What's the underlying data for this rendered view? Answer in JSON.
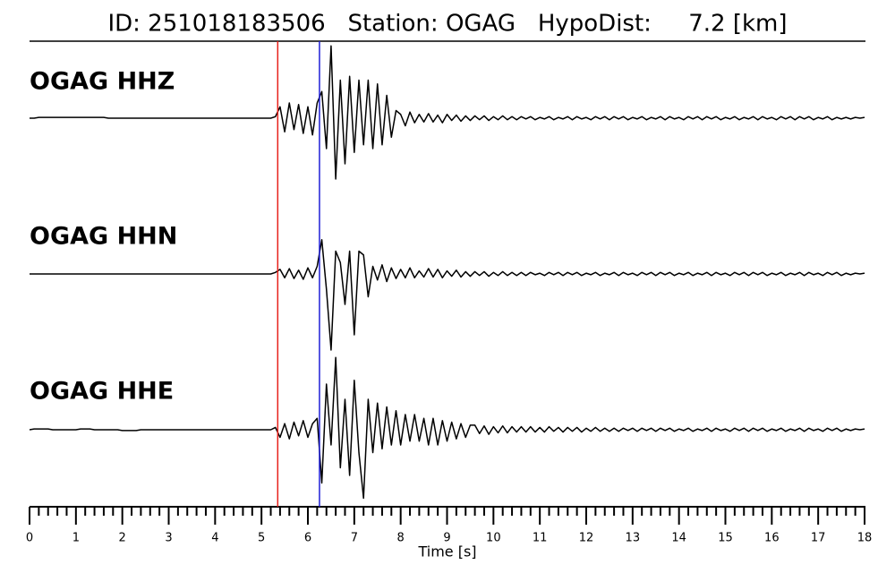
{
  "chart_data": {
    "type": "line",
    "title": "ID: 251018183506   Station: OGAG   HypoDist:     7.2 [km]",
    "x_label": "Time [s]",
    "xlim": [
      0,
      18
    ],
    "ylim": [
      -1,
      1
    ],
    "xticks": [
      0,
      1,
      2,
      3,
      4,
      5,
      6,
      7,
      8,
      9,
      10,
      11,
      12,
      13,
      14,
      15,
      16,
      17,
      18
    ],
    "xminorticks": [
      0.2,
      0.4,
      0.6,
      0.8,
      1.2,
      1.4,
      1.6,
      1.8,
      2.2,
      2.4,
      2.6,
      2.8,
      3.2,
      3.4,
      3.6,
      3.8,
      4.2,
      4.4,
      4.6,
      4.8,
      5.2,
      5.4,
      5.6,
      5.8,
      6.2,
      6.4,
      6.6,
      6.8,
      7.2,
      7.4,
      7.6,
      7.8,
      8.2,
      8.4,
      8.6,
      8.8,
      9.2,
      9.4,
      9.6,
      9.8,
      10.2,
      10.4,
      10.6,
      10.8,
      11.2,
      11.4,
      11.6,
      11.8,
      12.2,
      12.4,
      12.6,
      12.8,
      13.2,
      13.4,
      13.6,
      13.8,
      14.2,
      14.4,
      14.6,
      14.8,
      15.2,
      15.4,
      15.6,
      15.8,
      16.2,
      16.4,
      16.6,
      16.8,
      17.2,
      17.4,
      17.6,
      17.8
    ],
    "vlines": [
      {
        "x": 5.35,
        "color": "#e8221c"
      },
      {
        "x": 6.25,
        "color": "#1f1fd6"
      }
    ],
    "label_color": "#4c9a00",
    "x": [
      0,
      0.1,
      0.2,
      0.3,
      0.4,
      0.5,
      0.6,
      0.7,
      0.8,
      0.9,
      1,
      1.1,
      1.2,
      1.3,
      1.4,
      1.5,
      1.6,
      1.7,
      1.8,
      1.9,
      2,
      2.1,
      2.2,
      2.3,
      2.4,
      2.5,
      2.6,
      2.7,
      2.8,
      2.9,
      3,
      3.1,
      3.2,
      3.3,
      3.4,
      3.5,
      3.6,
      3.7,
      3.8,
      3.9,
      4,
      4.1,
      4.2,
      4.3,
      4.4,
      4.5,
      4.6,
      4.7,
      4.8,
      4.9,
      5,
      5.1,
      5.2,
      5.3,
      5.4,
      5.5,
      5.6,
      5.7,
      5.8,
      5.9,
      6,
      6.1,
      6.2,
      6.3,
      6.4,
      6.5,
      6.6,
      6.7,
      6.8,
      6.9,
      7,
      7.1,
      7.2,
      7.3,
      7.4,
      7.5,
      7.6,
      7.7,
      7.8,
      7.9,
      8,
      8.1,
      8.2,
      8.3,
      8.4,
      8.5,
      8.6,
      8.7,
      8.8,
      8.9,
      9,
      9.1,
      9.2,
      9.3,
      9.4,
      9.5,
      9.6,
      9.7,
      9.8,
      9.9,
      10,
      10.1,
      10.2,
      10.3,
      10.4,
      10.5,
      10.6,
      10.7,
      10.8,
      10.9,
      11,
      11.1,
      11.2,
      11.3,
      11.4,
      11.5,
      11.6,
      11.7,
      11.8,
      11.9,
      12,
      12.1,
      12.2,
      12.3,
      12.4,
      12.5,
      12.6,
      12.7,
      12.8,
      12.9,
      13,
      13.1,
      13.2,
      13.3,
      13.4,
      13.5,
      13.6,
      13.7,
      13.8,
      13.9,
      14,
      14.1,
      14.2,
      14.3,
      14.4,
      14.5,
      14.6,
      14.7,
      14.8,
      14.9,
      15,
      15.1,
      15.2,
      15.3,
      15.4,
      15.5,
      15.6,
      15.7,
      15.8,
      15.9,
      16,
      16.1,
      16.2,
      16.3,
      16.4,
      16.5,
      16.6,
      16.7,
      16.8,
      16.9,
      17,
      17.1,
      17.2,
      17.3,
      17.4,
      17.5,
      17.6,
      17.7,
      17.8,
      17.9,
      18
    ],
    "series": [
      {
        "name": "OGAG HHZ",
        "color": "#000000",
        "values": [
          0,
          0,
          0.01,
          0.01,
          0.01,
          0.01,
          0.01,
          0.01,
          0.01,
          0.01,
          0.01,
          0.01,
          0.01,
          0.01,
          0.01,
          0.01,
          0.01,
          0,
          0,
          0,
          0,
          0,
          0,
          0,
          0,
          0,
          0,
          0,
          0,
          0,
          0,
          0,
          0,
          0,
          0,
          0,
          0,
          0,
          0,
          0,
          0,
          0,
          0,
          0,
          0,
          0,
          0,
          0,
          0,
          0,
          0,
          0,
          0,
          0.02,
          0.15,
          -0.18,
          0.2,
          -0.15,
          0.18,
          -0.2,
          0.15,
          -0.22,
          0.2,
          0.35,
          -0.4,
          0.95,
          -0.8,
          0.5,
          -0.6,
          0.55,
          -0.45,
          0.5,
          -0.35,
          0.5,
          -0.4,
          0.45,
          -0.35,
          0.3,
          -0.25,
          0.1,
          0.05,
          -0.1,
          0.08,
          -0.06,
          0.05,
          -0.05,
          0.06,
          -0.05,
          0.04,
          -0.06,
          0.05,
          -0.03,
          0.04,
          -0.04,
          0.03,
          -0.03,
          0.03,
          -0.02,
          0.03,
          -0.03,
          0.02,
          -0.02,
          0.03,
          -0.02,
          0.02,
          -0.02,
          0.02,
          -0.01,
          0.02,
          -0.02,
          0.01,
          -0.01,
          0.02,
          -0.02,
          0.01,
          -0.01,
          0.02,
          -0.02,
          0.02,
          -0.01,
          0.01,
          -0.02,
          0.02,
          -0.01,
          0.02,
          -0.02,
          0.02,
          -0.01,
          0.02,
          -0.02,
          0.01,
          -0.01,
          0.02,
          -0.02,
          0.01,
          -0.01,
          0.02,
          -0.02,
          0.02,
          -0.01,
          0.01,
          -0.02,
          0.02,
          -0.01,
          0.02,
          -0.02,
          0.02,
          -0.01,
          0.02,
          -0.02,
          0.01,
          -0.01,
          0.02,
          -0.02,
          0.01,
          -0.01,
          0.02,
          -0.02,
          0.02,
          -0.01,
          0.01,
          -0.02,
          0.02,
          -0.01,
          0.02,
          -0.02,
          0.02,
          -0.01,
          0.02,
          -0.02,
          0.01,
          -0.01,
          0.02,
          -0.02,
          0.01,
          -0.01,
          0.01,
          -0.01,
          0.01,
          0,
          0.01
        ]
      },
      {
        "name": "OGAG HHN",
        "color": "#000000",
        "values": [
          0,
          0,
          0,
          0,
          0,
          0,
          0,
          0,
          0,
          0,
          0,
          0,
          0,
          0,
          0,
          0,
          0,
          0,
          0,
          0,
          0,
          0,
          0,
          0,
          0,
          0,
          0,
          0,
          0,
          0,
          0,
          0,
          0,
          0,
          0,
          0,
          0,
          0,
          0,
          0,
          0,
          0,
          0,
          0,
          0,
          0,
          0,
          0,
          0,
          0,
          0,
          0,
          0,
          0.02,
          0.06,
          -0.05,
          0.07,
          -0.06,
          0.05,
          -0.07,
          0.08,
          -0.05,
          0.1,
          0.45,
          -0.2,
          -1.0,
          0.3,
          0.15,
          -0.4,
          0.3,
          -0.8,
          0.3,
          0.25,
          -0.3,
          0.1,
          -0.08,
          0.12,
          -0.1,
          0.08,
          -0.06,
          0.06,
          -0.05,
          0.08,
          -0.05,
          0.04,
          -0.04,
          0.07,
          -0.04,
          0.06,
          -0.05,
          0.04,
          -0.03,
          0.05,
          -0.04,
          0.03,
          -0.03,
          0.03,
          -0.02,
          0.03,
          -0.03,
          0.02,
          -0.02,
          0.03,
          -0.02,
          0.02,
          -0.02,
          0.02,
          -0.02,
          0.02,
          -0.01,
          0.01,
          -0.02,
          0.02,
          -0.01,
          0.02,
          -0.02,
          0.02,
          -0.01,
          0.02,
          -0.02,
          0.01,
          -0.01,
          0.02,
          -0.02,
          0.01,
          -0.01,
          0.02,
          -0.02,
          0.02,
          -0.01,
          0.01,
          -0.02,
          0.02,
          -0.01,
          0.02,
          -0.02,
          0.02,
          -0.01,
          0.02,
          -0.02,
          0.01,
          -0.01,
          0.02,
          -0.02,
          0.01,
          -0.01,
          0.02,
          -0.02,
          0.02,
          -0.01,
          0.01,
          -0.02,
          0.02,
          -0.01,
          0.02,
          -0.02,
          0.02,
          -0.01,
          0.02,
          -0.02,
          0.01,
          -0.01,
          0.02,
          -0.02,
          0.01,
          -0.01,
          0.02,
          -0.02,
          0.02,
          -0.01,
          0.01,
          -0.02,
          0.02,
          -0.01,
          0.02,
          -0.02,
          0.01,
          -0.01,
          0.01,
          0,
          0.01
        ]
      },
      {
        "name": "OGAG HHE",
        "color": "#000000",
        "values": [
          0,
          0.01,
          0.01,
          0.01,
          0.01,
          0,
          0,
          0,
          0,
          0,
          0,
          0.01,
          0.01,
          0.01,
          0,
          0,
          0,
          0,
          0,
          0,
          -0.01,
          -0.01,
          -0.01,
          -0.01,
          0,
          0,
          0,
          0,
          0,
          0,
          0,
          0,
          0,
          0,
          0,
          0,
          0,
          0,
          0,
          0,
          0,
          0,
          0,
          0,
          0,
          0,
          0,
          0,
          0,
          0,
          0,
          0,
          0,
          0.03,
          -0.1,
          0.08,
          -0.12,
          0.1,
          -0.08,
          0.12,
          -0.1,
          0.08,
          0.15,
          -0.7,
          0.6,
          -0.2,
          0.95,
          -0.5,
          0.4,
          -0.6,
          0.65,
          -0.3,
          -0.9,
          0.4,
          -0.3,
          0.35,
          -0.25,
          0.3,
          -0.2,
          0.25,
          -0.2,
          0.2,
          -0.15,
          0.2,
          -0.15,
          0.15,
          -0.2,
          0.15,
          -0.2,
          0.12,
          -0.15,
          0.1,
          -0.12,
          0.08,
          -0.1,
          0.06,
          0.06,
          -0.05,
          0.05,
          -0.06,
          0.04,
          -0.04,
          0.05,
          -0.04,
          0.04,
          -0.03,
          0.04,
          -0.03,
          0.04,
          -0.03,
          0.03,
          -0.03,
          0.04,
          -0.02,
          0.03,
          -0.03,
          0.03,
          -0.02,
          0.03,
          -0.03,
          0.02,
          -0.02,
          0.03,
          -0.02,
          0.02,
          -0.02,
          0.02,
          -0.02,
          0.02,
          -0.01,
          0.02,
          -0.02,
          0.02,
          -0.01,
          0.02,
          -0.02,
          0.02,
          -0.01,
          0.02,
          -0.02,
          0.01,
          -0.01,
          0.02,
          -0.02,
          0.01,
          -0.01,
          0.02,
          -0.02,
          0.02,
          -0.01,
          0.01,
          -0.02,
          0.02,
          -0.01,
          0.02,
          -0.02,
          0.02,
          -0.01,
          0.02,
          -0.02,
          0.01,
          -0.01,
          0.02,
          -0.02,
          0.01,
          -0.01,
          0.02,
          -0.02,
          0.02,
          -0.01,
          0.01,
          -0.02,
          0.02,
          -0.01,
          0.02,
          -0.02,
          0.01,
          -0.01,
          0.01,
          0,
          0.01
        ]
      }
    ]
  }
}
